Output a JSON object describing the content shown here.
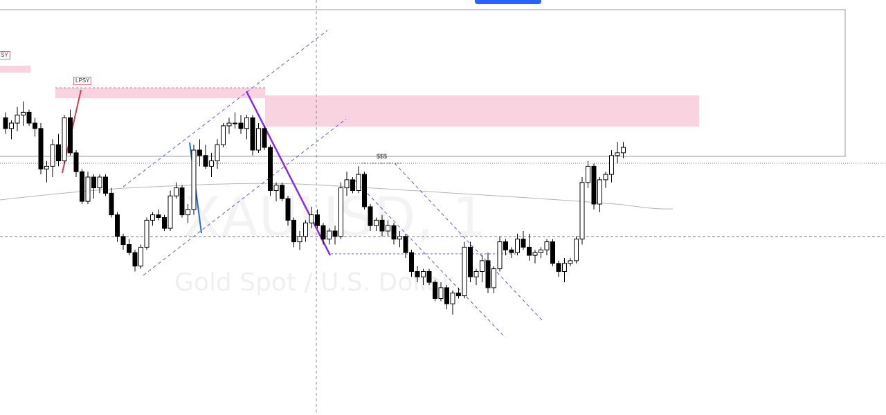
{
  "watermark": {
    "ticker": "XAUUSD, 1",
    "description": "Gold Spot / U.S. Dollar"
  },
  "annotations": {
    "lpsy_left": "SY",
    "lpsy": "LPSY",
    "liquidity": "$$$"
  },
  "colors": {
    "bull_fill": "#ffffff",
    "bear_fill": "#000000",
    "zone": "#f7c6d6",
    "channel": "#5b5bd6",
    "purple_leg": "#8a2be2",
    "blue_leg": "#1e6bd6",
    "red_leg": "#d63a4a",
    "ma": "#b5b5b5",
    "accent": "#2962ff"
  },
  "chart_data": {
    "type": "candlestick",
    "title": "",
    "xlabel": "",
    "ylabel": "",
    "ylim": [
      0,
      100
    ],
    "grid": false,
    "candles": [
      [
        82,
        84,
        76,
        78
      ],
      [
        78,
        81,
        74,
        80
      ],
      [
        80,
        86,
        77,
        83
      ],
      [
        83,
        88,
        79,
        84
      ],
      [
        84,
        85,
        79,
        80
      ],
      [
        80,
        82,
        75,
        78
      ],
      [
        78,
        80,
        61,
        63
      ],
      [
        63,
        66,
        58,
        64
      ],
      [
        64,
        74,
        60,
        72
      ],
      [
        72,
        76,
        64,
        66
      ],
      [
        66,
        83,
        65,
        82
      ],
      [
        82,
        85,
        68,
        69
      ],
      [
        69,
        70,
        60,
        62
      ],
      [
        62,
        63,
        50,
        51
      ],
      [
        51,
        62,
        50,
        60
      ],
      [
        60,
        61,
        52,
        56
      ],
      [
        56,
        61,
        54,
        60
      ],
      [
        60,
        61,
        53,
        54
      ],
      [
        54,
        56,
        45,
        46
      ],
      [
        46,
        47,
        36,
        38
      ],
      [
        38,
        39,
        33,
        35
      ],
      [
        35,
        37,
        31,
        32
      ],
      [
        32,
        33,
        25,
        27
      ],
      [
        27,
        35,
        26,
        34
      ],
      [
        34,
        45,
        33,
        44
      ],
      [
        44,
        47,
        42,
        46
      ],
      [
        46,
        48,
        44,
        45
      ],
      [
        45,
        46,
        40,
        41
      ],
      [
        41,
        55,
        40,
        53
      ],
      [
        53,
        58,
        52,
        56
      ],
      [
        56,
        57,
        45,
        46
      ],
      [
        46,
        50,
        43,
        48
      ],
      [
        48,
        72,
        46,
        70
      ],
      [
        70,
        74,
        64,
        68
      ],
      [
        68,
        72,
        63,
        64
      ],
      [
        64,
        69,
        60,
        66
      ],
      [
        66,
        74,
        63,
        72
      ],
      [
        72,
        80,
        71,
        79
      ],
      [
        79,
        82,
        76,
        80
      ],
      [
        80,
        84,
        78,
        80
      ],
      [
        80,
        83,
        76,
        78
      ],
      [
        78,
        83,
        74,
        82
      ],
      [
        82,
        83,
        68,
        70
      ],
      [
        70,
        80,
        69,
        78
      ],
      [
        78,
        79,
        70,
        71
      ],
      [
        71,
        72,
        53,
        55
      ],
      [
        55,
        58,
        51,
        57
      ],
      [
        57,
        58,
        51,
        52
      ],
      [
        52,
        53,
        42,
        44
      ],
      [
        44,
        45,
        34,
        36
      ],
      [
        36,
        40,
        33,
        38
      ],
      [
        38,
        44,
        36,
        43
      ],
      [
        43,
        49,
        41,
        46
      ],
      [
        46,
        48,
        41,
        42
      ],
      [
        42,
        43,
        35,
        37
      ],
      [
        37,
        41,
        35,
        40
      ],
      [
        40,
        42,
        35,
        38
      ],
      [
        38,
        58,
        37,
        56
      ],
      [
        56,
        62,
        53,
        59
      ],
      [
        59,
        60,
        54,
        55
      ],
      [
        55,
        64,
        54,
        61
      ],
      [
        61,
        62,
        48,
        49
      ],
      [
        49,
        50,
        40,
        42
      ],
      [
        42,
        45,
        40,
        44
      ],
      [
        44,
        46,
        38,
        40
      ],
      [
        40,
        44,
        38,
        42
      ],
      [
        42,
        43,
        35,
        37
      ],
      [
        37,
        40,
        34,
        38
      ],
      [
        38,
        39,
        30,
        32
      ],
      [
        32,
        33,
        23,
        25
      ],
      [
        25,
        27,
        21,
        23
      ],
      [
        23,
        26,
        20,
        25
      ],
      [
        25,
        26,
        20,
        21
      ],
      [
        21,
        22,
        14,
        15
      ],
      [
        15,
        21,
        14,
        19
      ],
      [
        19,
        20,
        11,
        13
      ],
      [
        13,
        18,
        9,
        17
      ],
      [
        17,
        19,
        15,
        16
      ],
      [
        16,
        36,
        15,
        34
      ],
      [
        34,
        36,
        21,
        23
      ],
      [
        23,
        26,
        20,
        25
      ],
      [
        25,
        31,
        21,
        29
      ],
      [
        29,
        32,
        17,
        19
      ],
      [
        19,
        27,
        17,
        26
      ],
      [
        26,
        38,
        25,
        36
      ],
      [
        36,
        37,
        31,
        33
      ],
      [
        33,
        34,
        30,
        32
      ],
      [
        32,
        39,
        31,
        37
      ],
      [
        37,
        40,
        33,
        34
      ],
      [
        34,
        39,
        29,
        31
      ],
      [
        31,
        33,
        28,
        32
      ],
      [
        32,
        34,
        30,
        33
      ],
      [
        33,
        37,
        31,
        36
      ],
      [
        36,
        37,
        27,
        28
      ],
      [
        28,
        29,
        23,
        25
      ],
      [
        25,
        30,
        21,
        28
      ],
      [
        28,
        30,
        27,
        29
      ],
      [
        29,
        38,
        28,
        37
      ],
      [
        37,
        60,
        35,
        58
      ],
      [
        58,
        66,
        56,
        64
      ],
      [
        64,
        65,
        48,
        50
      ],
      [
        50,
        60,
        47,
        59
      ],
      [
        59,
        62,
        56,
        61
      ],
      [
        61,
        70,
        58,
        68
      ],
      [
        68,
        73,
        65,
        69
      ],
      [
        69,
        73,
        67,
        71
      ]
    ]
  }
}
